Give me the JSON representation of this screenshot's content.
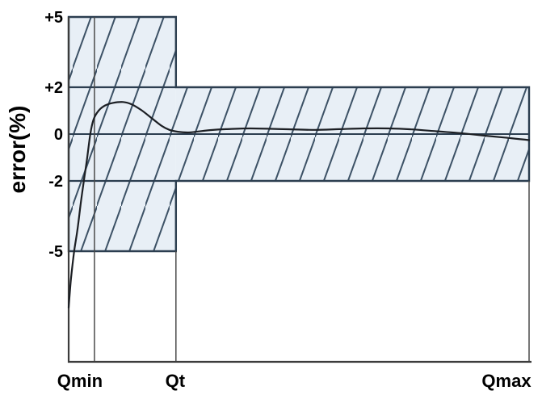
{
  "figure": {
    "description": "Flow meter error envelope chart",
    "background": "#ffffff"
  },
  "chart_data": {
    "type": "line",
    "title": "",
    "xlabel": "",
    "ylabel": "error(%)",
    "grid": false,
    "legend": false,
    "ylim": [
      -8,
      5.2
    ],
    "y_ticks": [
      {
        "label": "+5",
        "value": 5
      },
      {
        "label": "+2",
        "value": 2
      },
      {
        "label": "0",
        "value": 0
      },
      {
        "label": "-2",
        "value": -2
      },
      {
        "label": "-5",
        "value": -5
      }
    ],
    "x_ticks": [
      {
        "label": "Qmin",
        "pos": 0.056
      },
      {
        "label": "Qt",
        "pos": 0.233
      },
      {
        "label": "Qmax",
        "pos": 1.0
      }
    ],
    "regions": [
      {
        "name": "mpe-band-low-flow",
        "x": [
          0.0,
          0.233
        ],
        "error_range": [
          -5,
          5
        ]
      },
      {
        "name": "mpe-band-high-flow",
        "x": [
          0.233,
          1.0
        ],
        "error_range": [
          -2,
          2
        ]
      }
    ],
    "inner_limit_lines": {
      "levels": [
        2,
        -2
      ],
      "x": [
        0.0,
        0.233
      ]
    },
    "zero_line": {
      "x": [
        0.0,
        1.0
      ],
      "level": 0
    },
    "guides": [
      {
        "at": "Qmin",
        "pos": 0.056,
        "from_error": 5
      },
      {
        "at": "Qt",
        "pos": 0.233,
        "from_error": -5
      },
      {
        "at": "Qmax",
        "pos": 1.0,
        "from_error": -2
      }
    ],
    "series": [
      {
        "name": "meter-error-curve",
        "points": [
          [
            0.0,
            -7.4
          ],
          [
            0.005,
            -6.2
          ],
          [
            0.012,
            -5.0
          ],
          [
            0.019,
            -4.1
          ],
          [
            0.026,
            -3.0
          ],
          [
            0.033,
            -2.0
          ],
          [
            0.04,
            -1.05
          ],
          [
            0.047,
            0.0
          ],
          [
            0.054,
            0.62
          ],
          [
            0.065,
            1.0
          ],
          [
            0.079,
            1.22
          ],
          [
            0.096,
            1.33
          ],
          [
            0.118,
            1.37
          ],
          [
            0.137,
            1.27
          ],
          [
            0.158,
            1.02
          ],
          [
            0.181,
            0.67
          ],
          [
            0.202,
            0.35
          ],
          [
            0.219,
            0.18
          ],
          [
            0.237,
            0.1
          ],
          [
            0.258,
            0.07
          ],
          [
            0.281,
            0.11
          ],
          [
            0.307,
            0.17
          ],
          [
            0.342,
            0.21
          ],
          [
            0.395,
            0.24
          ],
          [
            0.465,
            0.21
          ],
          [
            0.535,
            0.18
          ],
          [
            0.588,
            0.21
          ],
          [
            0.64,
            0.24
          ],
          [
            0.693,
            0.24
          ],
          [
            0.746,
            0.2
          ],
          [
            0.798,
            0.12
          ],
          [
            0.851,
            0.04
          ],
          [
            0.904,
            -0.07
          ],
          [
            0.947,
            -0.15
          ],
          [
            0.982,
            -0.22
          ],
          [
            1.0,
            -0.26
          ]
        ]
      }
    ],
    "colors": {
      "band_fill": "#e8eff6",
      "band_hatch": "#3d5266",
      "band_border": "#2c3e50",
      "curve": "#1c1f24",
      "axis": "#3c3c3c",
      "guide": "#4a4a4a",
      "text": "#000000"
    }
  }
}
